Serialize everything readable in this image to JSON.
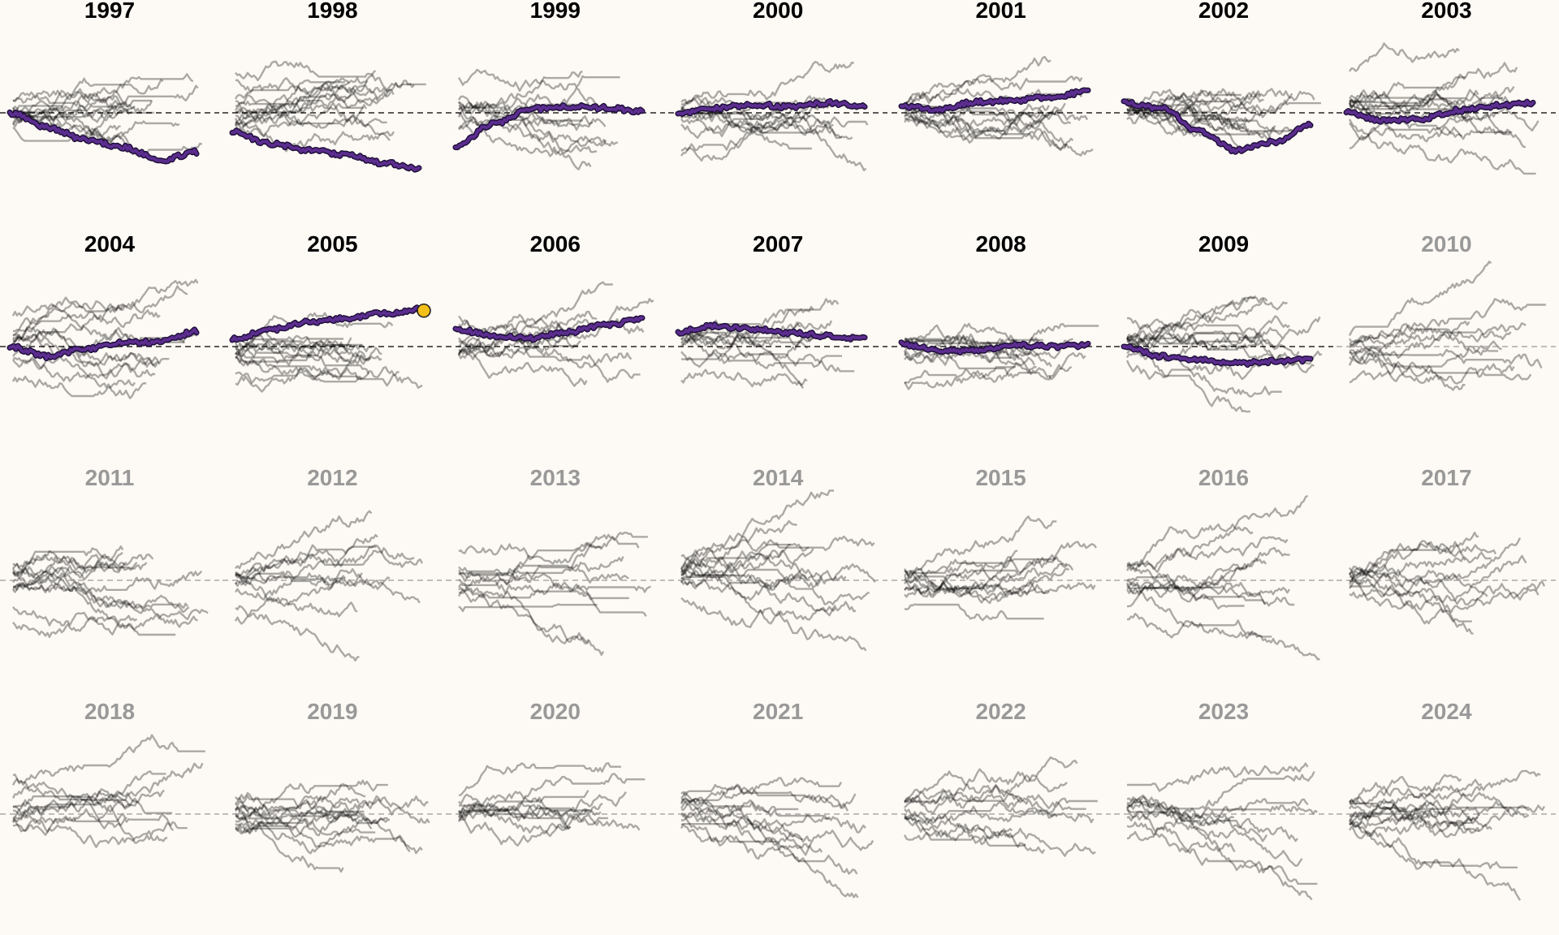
{
  "chart_data": {
    "type": "line",
    "description_free": true,
    "layout": "small-multiples",
    "reference_line": 0,
    "colors": {
      "background": "#fdf9f4",
      "highlight": "#5b2d8e",
      "highlight_outline": "#1f0f3a",
      "active_title": "#000000",
      "inactive_title": "#999999",
      "trace": "#000000",
      "end_marker": "#f2c019"
    },
    "panels": [
      {
        "year": "1997",
        "active": true,
        "highlight": [
          0,
          -1.2,
          -2.2,
          -2.8,
          -3.9,
          -3.2
        ]
      },
      {
        "year": "1998",
        "active": true,
        "highlight": [
          -1.6,
          -2.5,
          -3.1,
          -3.4,
          -4.1,
          -4.6
        ]
      },
      {
        "year": "1999",
        "active": true,
        "highlight": [
          -2.8,
          -0.9,
          0.3,
          0.5,
          0.4,
          0.1
        ]
      },
      {
        "year": "2000",
        "active": true,
        "highlight": [
          0,
          0.4,
          0.7,
          0.5,
          0.8,
          0.6
        ]
      },
      {
        "year": "2001",
        "active": true,
        "highlight": [
          0.5,
          0.3,
          0.9,
          1.0,
          1.3,
          1.8
        ]
      },
      {
        "year": "2002",
        "active": true,
        "highlight": [
          0.8,
          0.4,
          -1.5,
          -3.1,
          -2.4,
          -0.9
        ]
      },
      {
        "year": "2003",
        "active": true,
        "highlight": [
          0,
          -0.6,
          -0.5,
          0.2,
          0.6,
          0.8
        ]
      },
      {
        "year": "2004",
        "active": true,
        "highlight": [
          0,
          -0.8,
          -0.2,
          0.3,
          0.4,
          1.3
        ]
      },
      {
        "year": "2005",
        "active": true,
        "highlight": [
          0.6,
          1.4,
          2.0,
          2.3,
          2.7,
          3.1
        ],
        "end_marker": true
      },
      {
        "year": "2006",
        "active": true,
        "highlight": [
          1.4,
          0.9,
          0.7,
          1.2,
          1.8,
          2.2
        ]
      },
      {
        "year": "2007",
        "active": true,
        "highlight": [
          1.2,
          1.7,
          1.4,
          1.1,
          0.9,
          0.6
        ]
      },
      {
        "year": "2008",
        "active": true,
        "highlight": [
          0.2,
          -0.3,
          -0.4,
          0.1,
          0.0,
          0.1
        ]
      },
      {
        "year": "2009",
        "active": true,
        "highlight": [
          0,
          -0.8,
          -1.1,
          -1.4,
          -1.2,
          -1.1
        ]
      },
      {
        "year": "2010",
        "active": false
      },
      {
        "year": "2011",
        "active": false
      },
      {
        "year": "2012",
        "active": false
      },
      {
        "year": "2013",
        "active": false
      },
      {
        "year": "2014",
        "active": false
      },
      {
        "year": "2015",
        "active": false
      },
      {
        "year": "2016",
        "active": false
      },
      {
        "year": "2017",
        "active": false
      },
      {
        "year": "2018",
        "active": false
      },
      {
        "year": "2019",
        "active": false
      },
      {
        "year": "2020",
        "active": false
      },
      {
        "year": "2021",
        "active": false
      },
      {
        "year": "2022",
        "active": false
      },
      {
        "year": "2023",
        "active": false
      },
      {
        "year": "2024",
        "active": false
      }
    ]
  }
}
